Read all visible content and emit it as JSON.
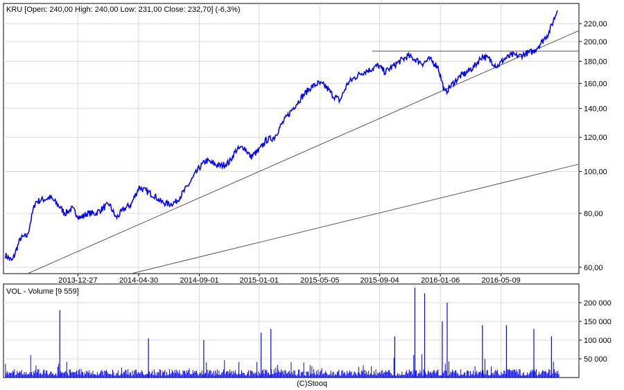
{
  "chart_data": [
    {
      "type": "line",
      "header": "KRU [Open: 240,00  High: 240,00  Low: 231,00  Close: 232,70] (-6,3%)",
      "x_tick_labels": [
        "2013-12-27",
        "2014-04-30",
        "2014-09-01",
        "2015-01-01",
        "2015-05-05",
        "2015-09-04",
        "2016-01-06",
        "2016-05-09"
      ],
      "y_scale": "log",
      "ylim": [
        58,
        245
      ],
      "y_tick_values": [
        60,
        80,
        100,
        120,
        140,
        160,
        180,
        200,
        220
      ],
      "y_tick_labels": [
        "60,00",
        "80,00",
        "100,00",
        "120,00",
        "140,00",
        "160,00",
        "180,00",
        "200,00",
        "220,00"
      ],
      "grid": true,
      "series": [
        {
          "color": "#0000ff",
          "x": [
            "2013-08-01",
            "2013-08-15",
            "2013-09-01",
            "2013-09-15",
            "2013-10-01",
            "2013-10-15",
            "2013-11-01",
            "2013-11-15",
            "2013-12-01",
            "2013-12-15",
            "2014-01-01",
            "2014-01-15",
            "2014-02-01",
            "2014-02-15",
            "2014-03-01",
            "2014-03-15",
            "2014-04-01",
            "2014-04-15",
            "2014-05-01",
            "2014-05-15",
            "2014-06-01",
            "2014-06-15",
            "2014-07-01",
            "2014-07-15",
            "2014-08-01",
            "2014-08-15",
            "2014-09-01",
            "2014-09-15",
            "2014-10-01",
            "2014-10-15",
            "2014-11-01",
            "2014-11-15",
            "2014-12-01",
            "2014-12-15",
            "2015-01-01",
            "2015-01-15",
            "2015-02-01",
            "2015-02-15",
            "2015-03-01",
            "2015-03-15",
            "2015-04-01",
            "2015-04-15",
            "2015-05-01",
            "2015-05-15",
            "2015-06-01",
            "2015-06-15",
            "2015-07-01",
            "2015-07-15",
            "2015-08-01",
            "2015-08-15",
            "2015-09-01",
            "2015-09-15",
            "2015-10-01",
            "2015-10-15",
            "2015-11-01",
            "2015-11-15",
            "2015-12-01",
            "2015-12-15",
            "2016-01-01",
            "2016-01-15",
            "2016-02-01",
            "2016-02-15",
            "2016-03-01",
            "2016-03-15",
            "2016-04-01",
            "2016-04-15",
            "2016-05-01",
            "2016-05-15",
            "2016-06-01",
            "2016-06-15",
            "2016-07-01",
            "2016-07-15",
            "2016-08-01",
            "2016-08-15",
            "2016-09-01"
          ],
          "values": [
            64,
            62,
            70,
            71,
            85,
            86,
            87,
            84,
            80,
            82,
            78,
            80,
            80,
            82,
            84,
            78,
            82,
            84,
            92,
            90,
            88,
            85,
            84,
            85,
            90,
            95,
            102,
            106,
            104,
            103,
            105,
            112,
            114,
            108,
            112,
            118,
            120,
            128,
            135,
            142,
            150,
            156,
            160,
            158,
            150,
            146,
            160,
            165,
            170,
            172,
            176,
            170,
            175,
            180,
            185,
            182,
            178,
            182,
            175,
            152,
            160,
            166,
            170,
            175,
            185,
            182,
            175,
            182,
            186,
            185,
            188,
            190,
            200,
            210,
            236
          ]
        }
      ],
      "annotations": {
        "resistance_level": 190,
        "trendline_upper": {
          "from": {
            "x": "2013-09-15",
            "y": 58
          },
          "to": {
            "x": "2016-10-15",
            "y": 212
          }
        },
        "trendline_lower": {
          "from": {
            "x": "2014-04-15",
            "y": 58
          },
          "to": {
            "x": "2016-10-15",
            "y": 104
          }
        },
        "resistance_start": "2015-08-20"
      }
    },
    {
      "type": "bar",
      "header": "VOL - Volume [9 559]",
      "ylim": [
        0,
        250000
      ],
      "y_tick_values": [
        50000,
        100000,
        150000,
        200000
      ],
      "y_tick_labels": [
        "50 000",
        "100 000",
        "150 000",
        "200 000"
      ],
      "bar_color": "#0000ff",
      "spikes": [
        {
          "x": "2013-11-20",
          "value": 180000
        },
        {
          "x": "2014-05-20",
          "value": 105000
        },
        {
          "x": "2014-09-10",
          "value": 100000
        },
        {
          "x": "2015-01-05",
          "value": 120000
        },
        {
          "x": "2015-01-25",
          "value": 130000
        },
        {
          "x": "2015-10-05",
          "value": 110000
        },
        {
          "x": "2015-11-15",
          "value": 240000
        },
        {
          "x": "2015-12-05",
          "value": 225000
        },
        {
          "x": "2016-01-20",
          "value": 200000
        },
        {
          "x": "2016-01-10",
          "value": 150000
        },
        {
          "x": "2016-04-01",
          "value": 140000
        },
        {
          "x": "2016-05-20",
          "value": 140000
        },
        {
          "x": "2016-07-15",
          "value": 130000
        },
        {
          "x": "2016-08-20",
          "value": 110000
        }
      ],
      "baseline_level": 15000
    }
  ],
  "footer": {
    "source": "(C)Stooq"
  }
}
